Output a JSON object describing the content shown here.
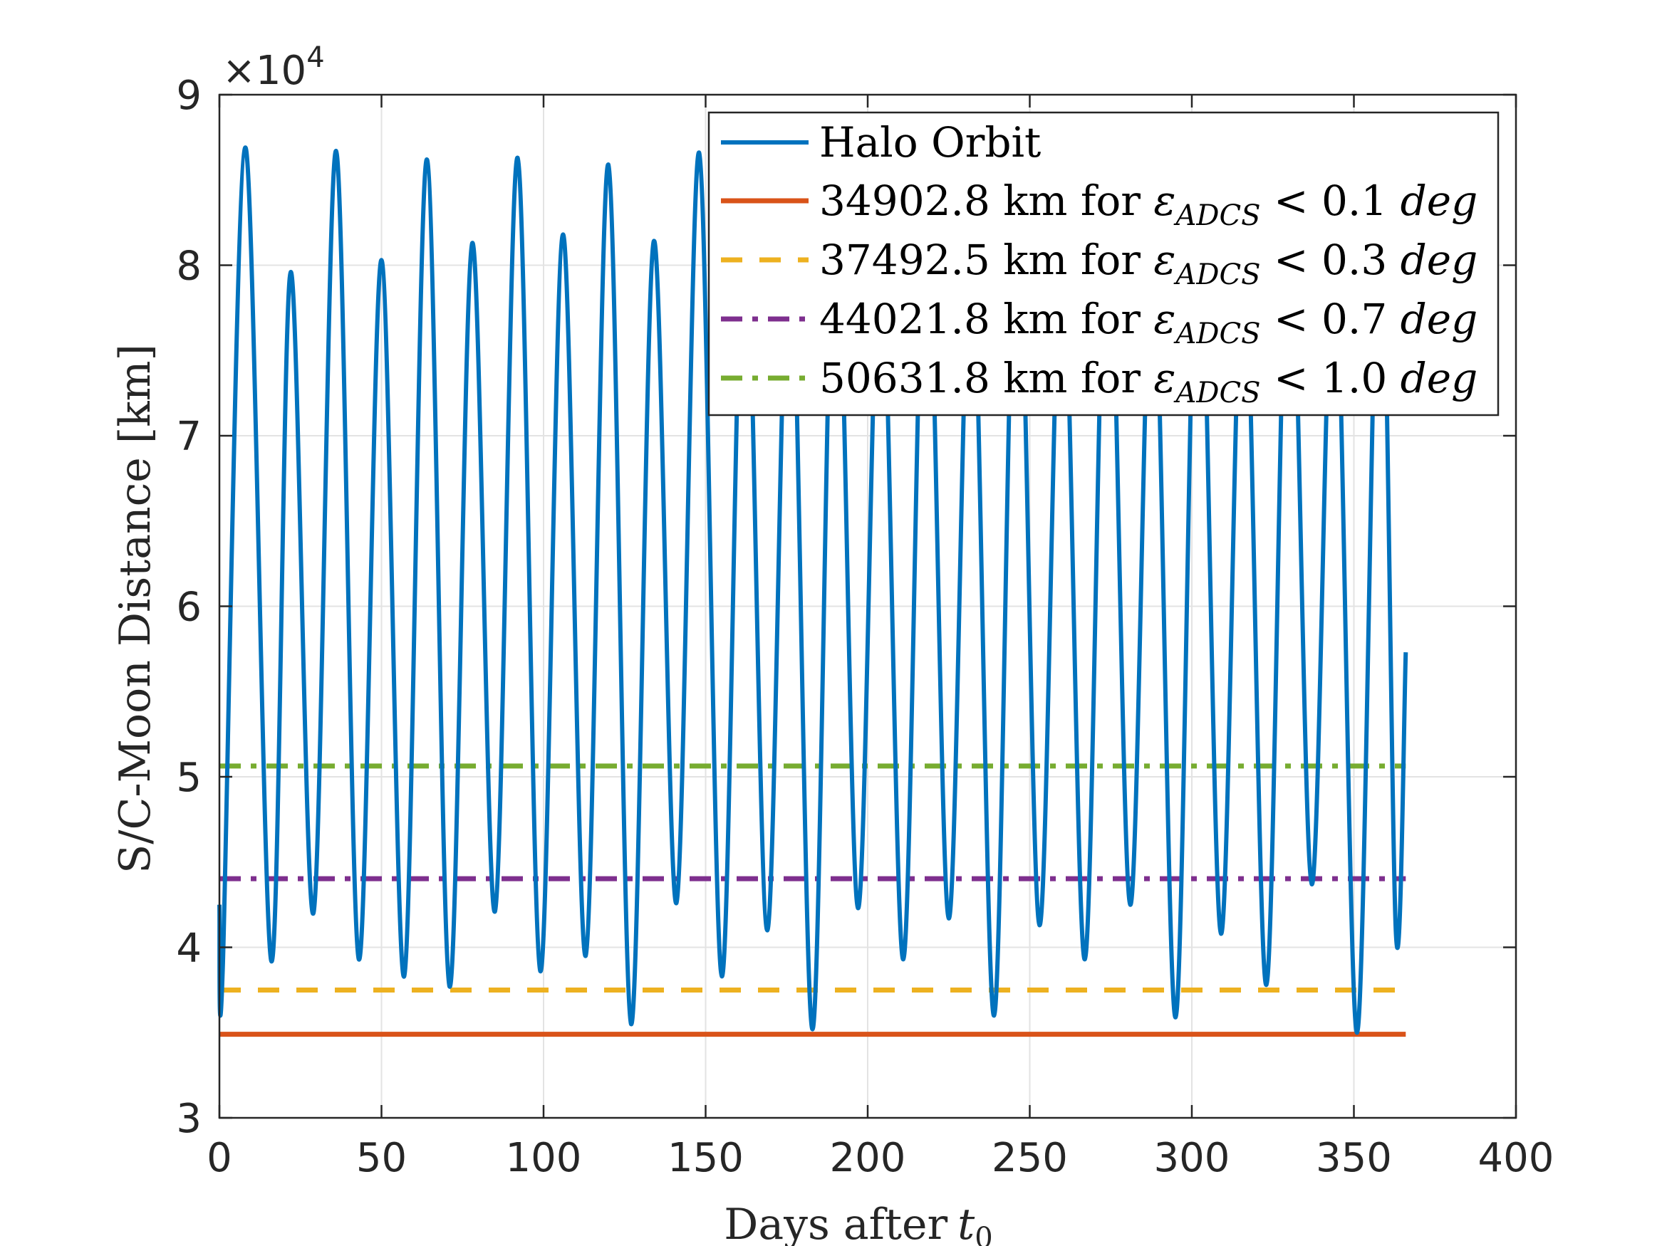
{
  "chart_data": {
    "type": "line",
    "xlabel": "Days after",
    "xlabel_sub": "t",
    "xlabel_sub_index": "0",
    "ylabel": "S/C-Moon Distance [km]",
    "xlim": [
      0,
      400
    ],
    "ylim": [
      30000,
      90000
    ],
    "y_multiplier_label": "×10",
    "y_multiplier_exp": "4",
    "x_ticks": [
      "0",
      "50",
      "100",
      "150",
      "200",
      "250",
      "300",
      "350",
      "400"
    ],
    "y_ticks": [
      "3",
      "4",
      "5",
      "6",
      "7",
      "8",
      "9"
    ],
    "grid": true,
    "legend_position": "top-right",
    "halo_orbit": {
      "name": "Halo Orbit",
      "color": "#0072BD",
      "x": [
        0,
        1,
        8,
        16,
        22,
        29,
        36,
        43,
        50,
        57,
        64,
        71,
        78,
        85,
        92,
        99,
        106,
        113,
        120,
        127,
        134,
        141,
        148,
        155,
        162,
        169,
        176,
        183,
        190,
        197,
        204,
        211,
        218,
        225,
        232,
        239,
        246,
        253,
        260,
        267,
        274,
        281,
        288,
        295,
        302,
        309,
        316,
        323,
        330,
        337,
        344,
        351,
        358,
        363,
        366
      ],
      "y": [
        42500,
        38600,
        86900,
        39200,
        79600,
        42000,
        86700,
        39300,
        80300,
        38300,
        86200,
        37700,
        81300,
        42100,
        86300,
        38600,
        81800,
        39500,
        85900,
        35500,
        81400,
        42600,
        86600,
        38300,
        84000,
        41000,
        83000,
        35200,
        85000,
        42300,
        82000,
        39300,
        85000,
        41700,
        82000,
        36000,
        85000,
        41300,
        82000,
        39300,
        85000,
        42500,
        82000,
        35900,
        85000,
        40800,
        82000,
        37800,
        85000,
        43700,
        82000,
        35000,
        85000,
        40700,
        57300
      ]
    },
    "series": [
      {
        "name": "34902.8 km for",
        "eps_sub": "ADCS",
        "ineq": "< 0.1",
        "unit": "deg",
        "value": 34902.8,
        "color": "#D95319",
        "style": "solid"
      },
      {
        "name": "37492.5 km for",
        "eps_sub": "ADCS",
        "ineq": "< 0.3",
        "unit": "deg",
        "value": 37492.5,
        "color": "#EDB120",
        "style": "dashed"
      },
      {
        "name": "44021.8 km for",
        "eps_sub": "ADCS",
        "ineq": "< 0.7",
        "unit": "deg",
        "value": 44021.8,
        "color": "#7E2F8E",
        "style": "dashdot"
      },
      {
        "name": "50631.8 km for",
        "eps_sub": "ADCS",
        "ineq": "< 1.0",
        "unit": "deg",
        "value": 50631.8,
        "color": "#77AC30",
        "style": "dashdot"
      }
    ],
    "threshold_x_range": [
      0,
      366
    ]
  }
}
